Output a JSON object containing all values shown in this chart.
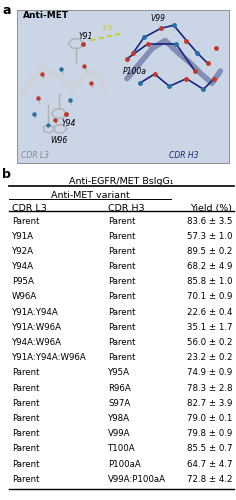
{
  "title_b": "Anti-EGFR/MET BsIgG₁",
  "subtitle_b": "Anti-MET variant",
  "col1_header": "CDR L3",
  "col2_header": "CDR H3",
  "col3_header": "Yield (%)",
  "rows": [
    [
      "Parent",
      "Parent",
      "83.6 ± 3.5"
    ],
    [
      "Y91A",
      "Parent",
      "57.3 ± 1.0"
    ],
    [
      "Y92A",
      "Parent",
      "89.5 ± 0.2"
    ],
    [
      "Y94A",
      "Parent",
      "68.2 ± 4.9"
    ],
    [
      "P95A",
      "Parent",
      "85.8 ± 1.0"
    ],
    [
      "W96A",
      "Parent",
      "70.1 ± 0.9"
    ],
    [
      "Y91A:Y94A",
      "Parent",
      "22.6 ± 0.4"
    ],
    [
      "Y91A:W96A",
      "Parent",
      "35.1 ± 1.7"
    ],
    [
      "Y94A:W96A",
      "Parent",
      "56.0 ± 0.2"
    ],
    [
      "Y91A:Y94A:W96A",
      "Parent",
      "23.2 ± 0.2"
    ],
    [
      "Parent",
      "Y95A",
      "74.9 ± 0.9"
    ],
    [
      "Parent",
      "R96A",
      "78.3 ± 2.8"
    ],
    [
      "Parent",
      "S97A",
      "82.7 ± 3.9"
    ],
    [
      "Parent",
      "Y98A",
      "79.0 ± 0.1"
    ],
    [
      "Parent",
      "V99A",
      "79.8 ± 0.9"
    ],
    [
      "Parent",
      "T100A",
      "85.5 ± 0.7"
    ],
    [
      "Parent",
      "P100aA",
      "64.7 ± 4.7"
    ],
    [
      "Parent",
      "V99A:P100aA",
      "72.8 ± 4.2"
    ]
  ],
  "bg_color": "#ffffff",
  "panel_a_bg": "#dce4ef",
  "panel_a_inner_bg": "#c8d4e3",
  "anti_met_label": "Anti-MET",
  "cdr_l3_label": "CDR L3",
  "cdr_h3_label": "CDR H3",
  "residue_labels": [
    "Y91",
    "V99",
    "P100a",
    "W96",
    "Y94"
  ],
  "hbond_label": "3.5",
  "l3_color": "#b0b0b0",
  "h3_color": "#1a237e",
  "oxygen_color": "#c0392b",
  "nitrogen_color": "#2471a3",
  "hbond_color": "#cccc00"
}
